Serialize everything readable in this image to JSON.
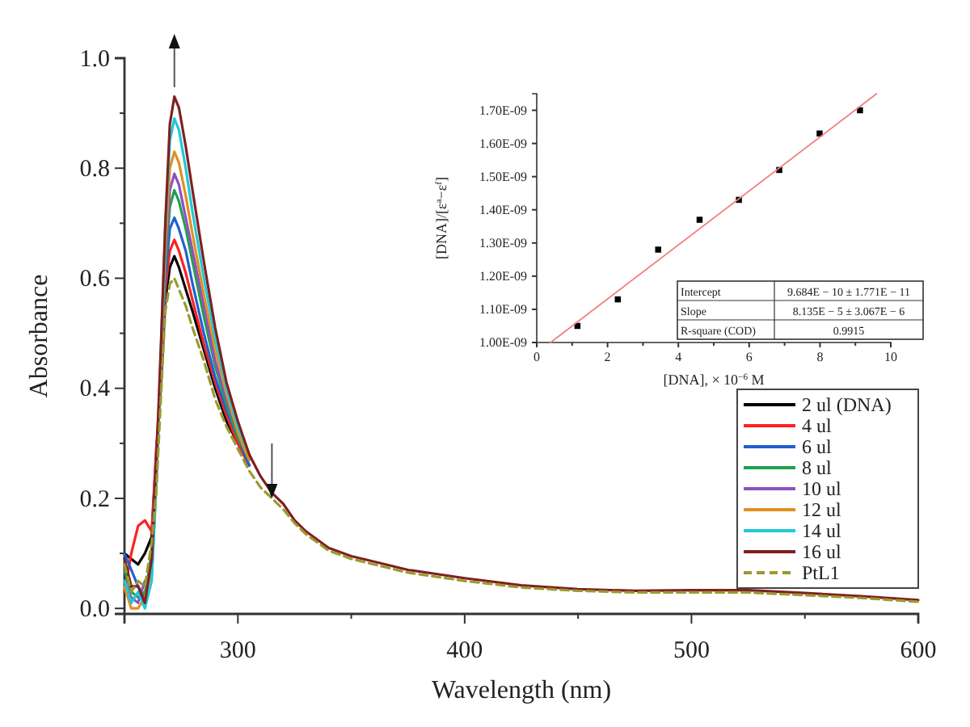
{
  "chart_data": [
    {
      "type": "line",
      "xlabel": "Wavelength (nm)",
      "ylabel": "Absorbance",
      "xlim": [
        250,
        600
      ],
      "ylim": [
        -0.01,
        1.0
      ],
      "xticks": [
        {
          "value": 250,
          "label": null
        },
        300,
        {
          "value": 350,
          "label": null
        },
        400,
        {
          "value": 450,
          "label": null
        },
        500,
        {
          "value": 550,
          "label": null
        },
        600
      ],
      "yticks": [
        {
          "value": 0,
          "label": "0.0"
        },
        {
          "value": 0.1,
          "label": null
        },
        0.2,
        {
          "value": 0.3,
          "label": null
        },
        0.4,
        {
          "value": 0.5,
          "label": null
        },
        0.6,
        {
          "value": 0.7,
          "label": null
        },
        0.8,
        {
          "value": 0.9,
          "label": null
        },
        {
          "value": 1,
          "label": "1.0"
        }
      ],
      "grid": false,
      "legend": "bottom right",
      "marker": "none",
      "x": [
        250,
        253,
        256,
        259,
        262,
        264,
        266,
        268,
        270,
        272,
        274,
        277,
        280,
        285,
        290,
        295,
        300,
        305,
        310,
        315,
        320,
        325,
        330,
        340,
        350,
        360,
        375,
        400,
        425,
        450,
        475,
        500,
        525,
        550,
        575,
        600
      ],
      "series": [
        {
          "name": "2 ul (DNA)",
          "color": "#000000",
          "values": [
            0.1,
            0.09,
            0.08,
            0.1,
            0.13,
            0.28,
            0.4,
            0.56,
            0.62,
            0.64,
            0.62,
            0.58,
            0.54,
            0.47,
            0.4,
            0.34,
            0.3,
            0.26,
            null,
            null,
            null,
            null,
            null,
            null,
            null,
            null,
            null,
            null,
            null,
            null,
            null,
            null,
            null,
            null,
            null,
            null
          ]
        },
        {
          "name": "4 ul",
          "color": "#ff2020",
          "values": [
            0.03,
            0.1,
            0.15,
            0.16,
            0.14,
            0.29,
            0.41,
            0.58,
            0.65,
            0.67,
            0.65,
            0.61,
            0.56,
            0.48,
            0.41,
            0.35,
            0.3,
            0.26,
            null,
            null,
            null,
            null,
            null,
            null,
            null,
            null,
            null,
            null,
            null,
            null,
            null,
            null,
            null,
            null,
            null,
            null
          ]
        },
        {
          "name": "6 ul",
          "color": "#2060d0",
          "values": [
            0.1,
            0.07,
            0.04,
            0.02,
            0.1,
            0.27,
            0.42,
            0.6,
            0.69,
            0.71,
            0.69,
            0.65,
            0.59,
            0.5,
            0.42,
            0.36,
            0.31,
            0.26,
            null,
            null,
            null,
            null,
            null,
            null,
            null,
            null,
            null,
            null,
            null,
            null,
            null,
            null,
            null,
            null,
            null,
            null
          ]
        },
        {
          "name": "8 ul",
          "color": "#20a050",
          "values": [
            0.07,
            0.03,
            0.02,
            0.03,
            0.08,
            0.25,
            0.43,
            0.62,
            0.73,
            0.76,
            0.74,
            0.69,
            0.63,
            0.53,
            0.44,
            0.37,
            0.31,
            0.27,
            null,
            null,
            null,
            null,
            null,
            null,
            null,
            null,
            null,
            null,
            null,
            null,
            null,
            null,
            null,
            null,
            null,
            null
          ]
        },
        {
          "name": "10 ul",
          "color": "#9050c0",
          "values": [
            0.05,
            0.02,
            0.01,
            0.05,
            0.06,
            0.23,
            0.44,
            0.64,
            0.76,
            0.79,
            0.77,
            0.71,
            0.65,
            0.55,
            0.45,
            0.38,
            0.32,
            0.27,
            null,
            null,
            null,
            null,
            null,
            null,
            null,
            null,
            null,
            null,
            null,
            null,
            null,
            null,
            null,
            null,
            null,
            null
          ]
        },
        {
          "name": "12 ul",
          "color": "#e09020",
          "values": [
            0.04,
            0,
            0,
            0.02,
            0.07,
            0.24,
            0.45,
            0.66,
            0.8,
            0.83,
            0.81,
            0.75,
            0.68,
            0.57,
            0.47,
            0.39,
            0.32,
            0.27,
            null,
            null,
            null,
            null,
            null,
            null,
            null,
            null,
            null,
            null,
            null,
            null,
            null,
            null,
            null,
            null,
            null,
            null
          ]
        },
        {
          "name": "14 ul",
          "color": "#20c8d8",
          "values": [
            0.05,
            0.01,
            0.03,
            0,
            0.05,
            0.22,
            0.46,
            0.69,
            0.85,
            0.89,
            0.87,
            0.8,
            0.72,
            0.6,
            0.49,
            0.4,
            0.33,
            0.28,
            null,
            null,
            null,
            null,
            null,
            null,
            null,
            null,
            null,
            null,
            null,
            null,
            null,
            null,
            null,
            null,
            null,
            null
          ]
        },
        {
          "name": "16 ul",
          "color": "#802020",
          "values": [
            0.09,
            0.04,
            0.04,
            0.01,
            0.09,
            0.26,
            0.47,
            0.7,
            0.88,
            0.93,
            0.91,
            0.84,
            0.76,
            0.63,
            0.51,
            0.41,
            0.34,
            0.28,
            0.24,
            0.21,
            0.19,
            0.16,
            0.14,
            0.11,
            0.095,
            0.085,
            0.07,
            0.055,
            0.042,
            0.035,
            0.032,
            0.033,
            0.033,
            0.028,
            0.022,
            0.015
          ]
        },
        {
          "name": "PtL1",
          "color": "#9a9a30",
          "line_style": "dashed",
          "values": [
            0.08,
            0.03,
            0.05,
            0.04,
            0.12,
            0.21,
            0.38,
            0.54,
            0.59,
            0.6,
            0.58,
            0.55,
            0.51,
            0.45,
            0.38,
            0.33,
            0.29,
            0.25,
            0.22,
            0.2,
            0.18,
            0.155,
            0.135,
            0.105,
            0.09,
            0.08,
            0.065,
            0.05,
            0.038,
            0.032,
            0.029,
            0.029,
            0.029,
            0.024,
            0.019,
            0.012
          ]
        }
      ]
    },
    {
      "type": "scatter",
      "xlabel": "[DNA], × 10$^{−6}$ M",
      "ylabel": "[DNA]/[ε$^{a}$−ε$^{f}$]",
      "xlim": [
        0,
        10
      ],
      "ylim": [
        1e-09,
        1.75e-09
      ],
      "xticks": [
        0,
        {
          "value": 1,
          "label": null
        },
        2,
        {
          "value": 3,
          "label": null
        },
        4,
        {
          "value": 5,
          "label": null
        },
        6,
        {
          "value": 7,
          "label": null
        },
        8,
        {
          "value": 9,
          "label": null
        },
        10
      ],
      "yticks": [
        {
          "value": 1e-09,
          "label": "1.00E-09"
        },
        {
          "value": 1.1e-09,
          "label": "1.10E-09"
        },
        {
          "value": 1.2e-09,
          "label": "1.20E-09"
        },
        {
          "value": 1.3e-09,
          "label": "1.30E-09"
        },
        {
          "value": 1.4e-09,
          "label": "1.40E-09"
        },
        {
          "value": 1.5e-09,
          "label": "1.50E-09"
        },
        {
          "value": 1.6e-09,
          "label": "1.60E-09"
        },
        {
          "value": 1.7e-09,
          "label": "1.70E-09"
        }
      ],
      "grid": false,
      "marker": "square",
      "annotations": [
        "Intercept",
        "9.684E − 10 ± 1.771E − 11",
        "Slope",
        "8.135E − 5 ± 3.067E − 6",
        "R-square (COD)",
        "0.9915"
      ],
      "series": [
        {
          "color": "#000000",
          "x": [
            1.15,
            2.29,
            3.43,
            4.6,
            5.71,
            6.85,
            7.99,
            9.13
          ],
          "values": [
            1.05e-09,
            1.13e-09,
            1.28e-09,
            1.37e-09,
            1.43e-09,
            1.52e-09,
            1.63e-09,
            1.7e-09
          ]
        },
        {
          "type": "line",
          "color": "#f08080",
          "marker": "none",
          "x": [
            0.39,
            9.6
          ],
          "values": [
            1e-09,
            1.75e-09
          ]
        }
      ]
    }
  ]
}
